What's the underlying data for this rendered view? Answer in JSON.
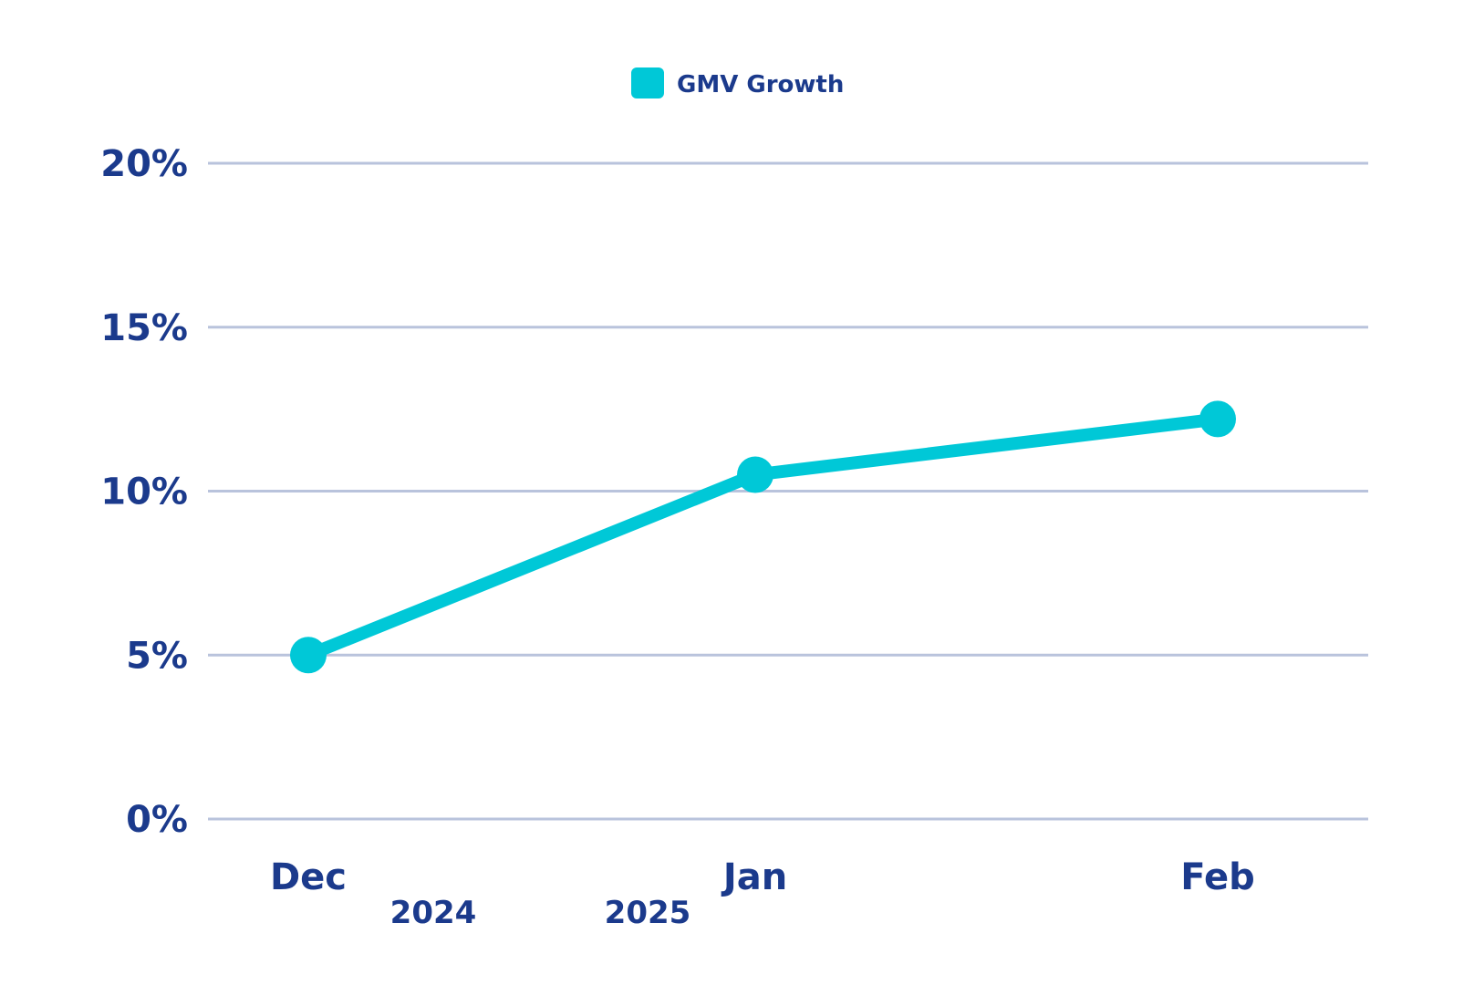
{
  "chart_data": {
    "type": "line",
    "title": "",
    "xlabel": "",
    "ylabel": "",
    "categories": [
      "Dec",
      "Jan",
      "Feb"
    ],
    "year_labels": [
      "2024",
      "2025"
    ],
    "series": [
      {
        "name": "GMV Growth",
        "values": [
          5.0,
          10.5,
          12.2
        ],
        "color": "#00c8d7"
      }
    ],
    "y_ticks": [
      "0%",
      "5%",
      "10%",
      "15%",
      "20%"
    ],
    "ylim": [
      0,
      20
    ],
    "grid": true,
    "legend_position": "top-center",
    "colors": {
      "text": "#1b3a8c",
      "grid": "#b9c3dc",
      "series": "#00c8d7"
    }
  }
}
